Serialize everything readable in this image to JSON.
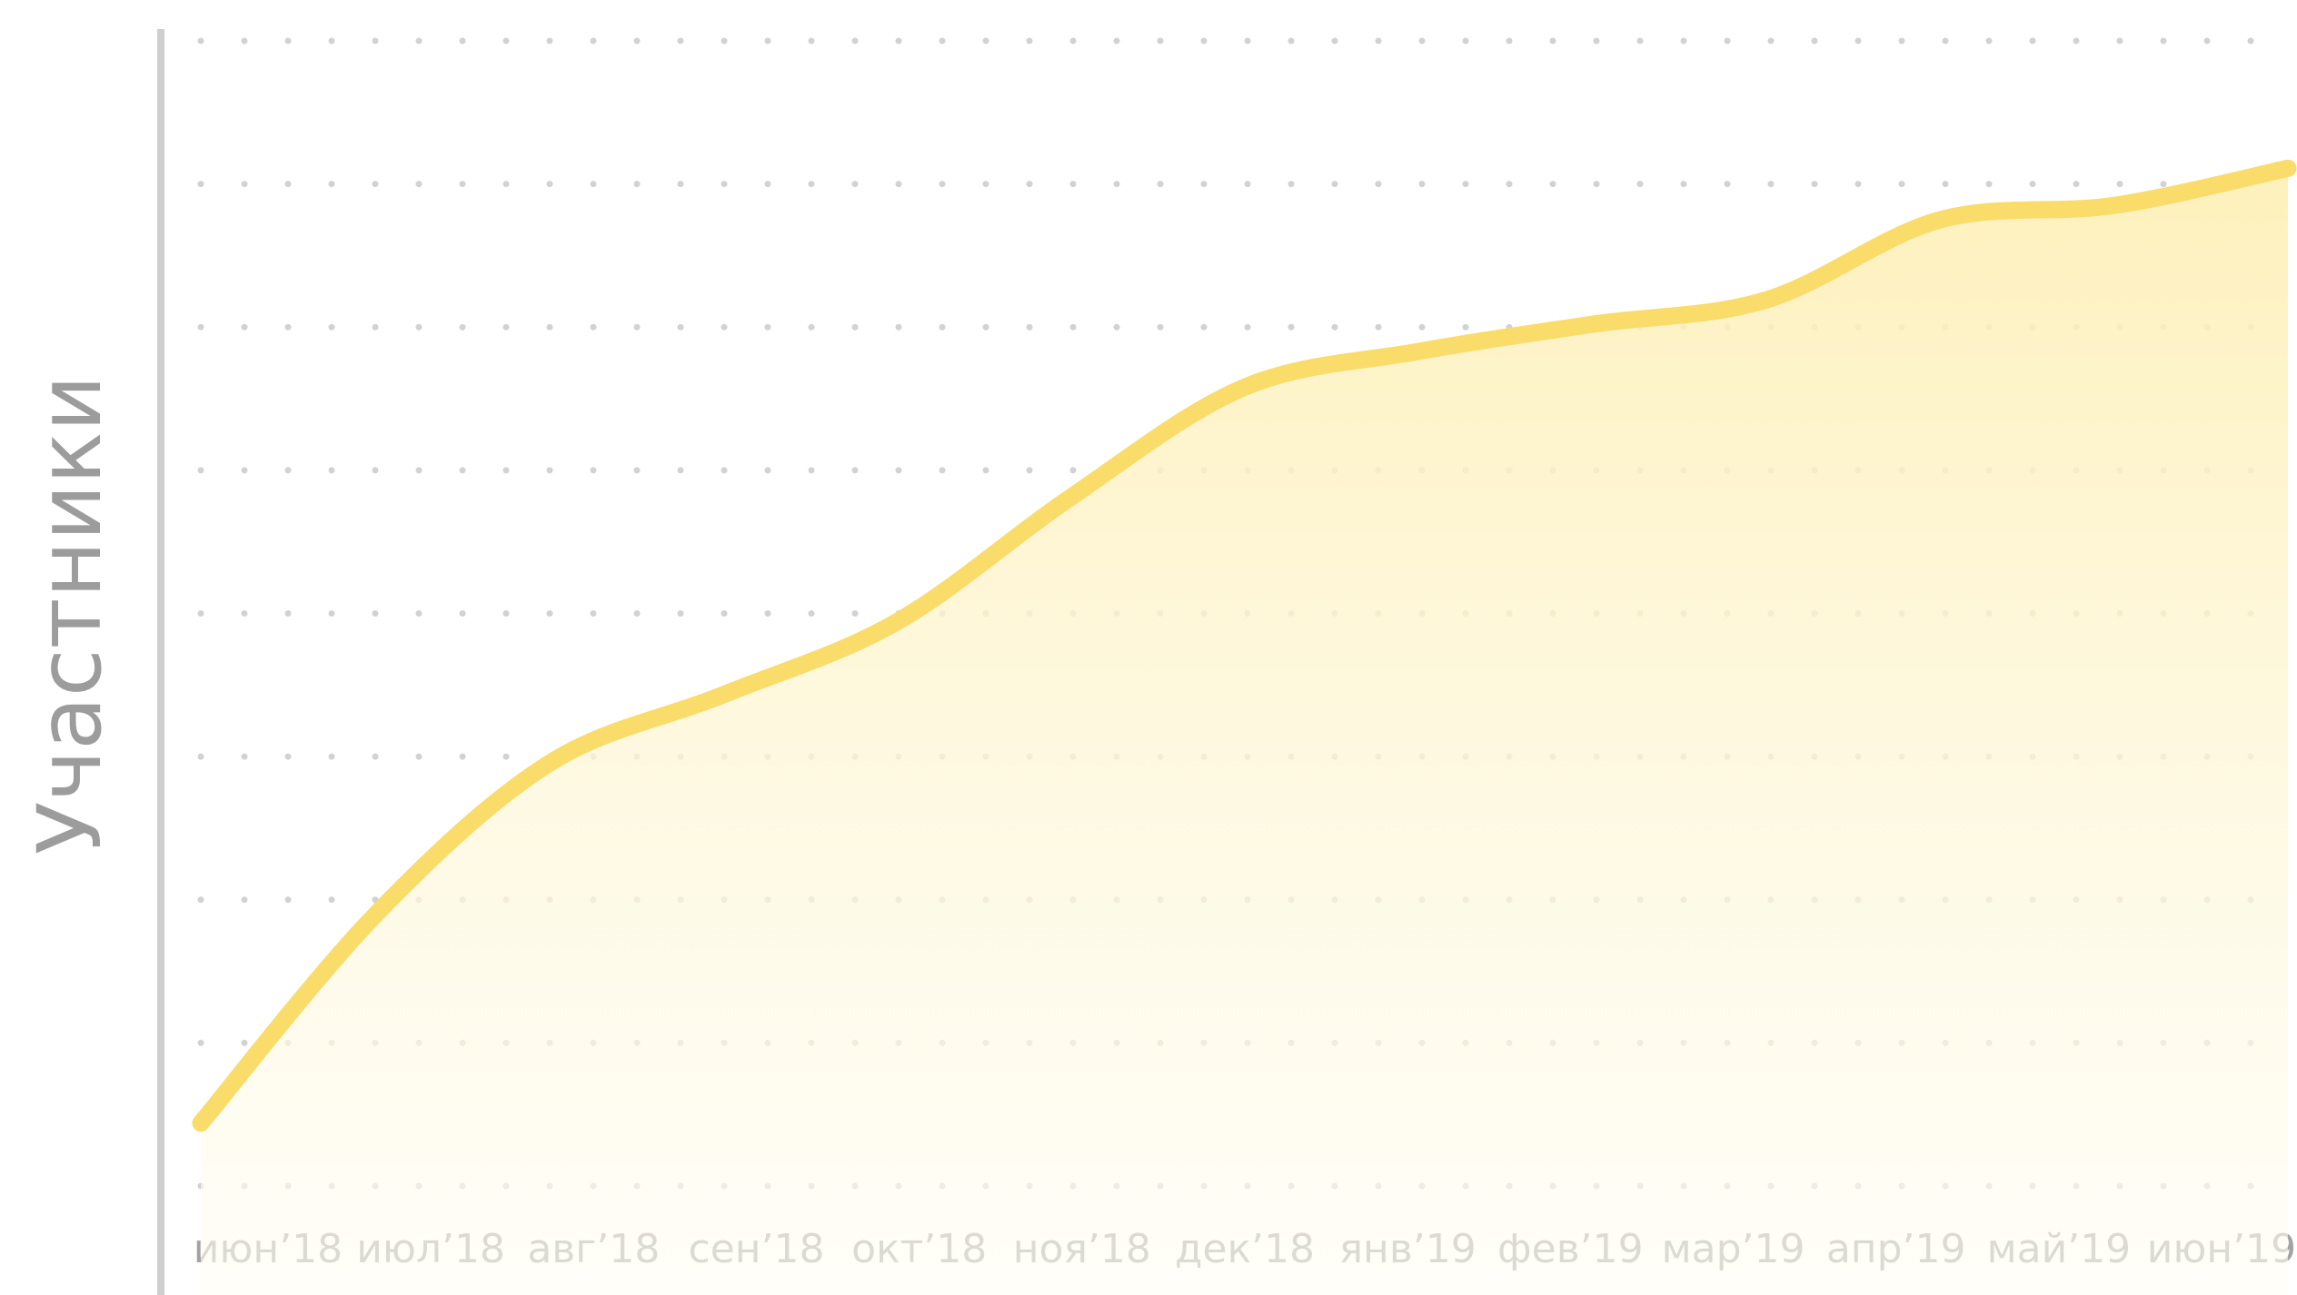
{
  "chart_data": {
    "type": "line",
    "y_label": "Участники",
    "categories": [
      "июн’18",
      "июл’18",
      "авг’18",
      "сен’18",
      "окт’18",
      "ноя’18",
      "дек’18",
      "янв’19",
      "фев’19",
      "мар’19",
      "апр’19",
      "май’19",
      "июн’19"
    ],
    "series": [
      {
        "name": "Участники",
        "color": "#f9dc6a",
        "values": [
          0.44,
          1.89,
          2.95,
          3.43,
          3.94,
          4.81,
          5.58,
          5.83,
          6.02,
          6.19,
          6.75,
          6.85,
          7.11
        ]
      }
    ],
    "ylim": [
      0,
      8
    ],
    "yticks": [
      0,
      1,
      2,
      3,
      4,
      5,
      6,
      7,
      8
    ],
    "grid": true
  }
}
